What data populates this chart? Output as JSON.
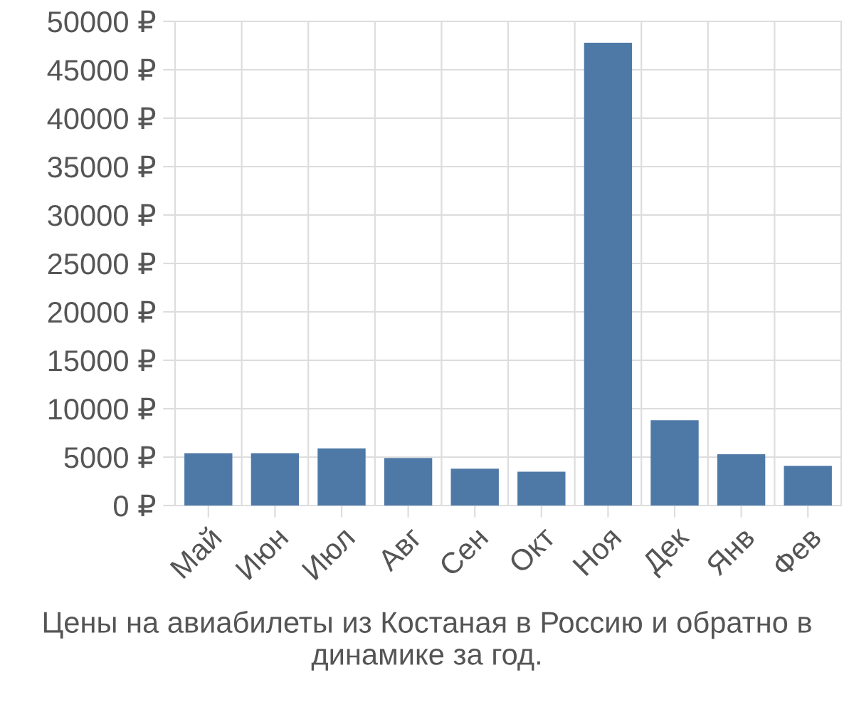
{
  "chart_data": {
    "type": "bar",
    "categories": [
      "Май",
      "Июн",
      "Июл",
      "Авг",
      "Сен",
      "Окт",
      "Ноя",
      "Дек",
      "Янв",
      "Фев"
    ],
    "values": [
      5400,
      5400,
      5900,
      4900,
      3800,
      3500,
      47800,
      8800,
      5300,
      4100
    ],
    "color": "#4e79a7",
    "ylim": [
      0,
      50000
    ],
    "yticks": [
      {
        "value": 0,
        "label": "0 ₽"
      },
      {
        "value": 5000,
        "label": "5000 ₽"
      },
      {
        "value": 10000,
        "label": "10000 ₽"
      },
      {
        "value": 15000,
        "label": "15000 ₽"
      },
      {
        "value": 20000,
        "label": "20000 ₽"
      },
      {
        "value": 25000,
        "label": "25000 ₽"
      },
      {
        "value": 30000,
        "label": "30000 ₽"
      },
      {
        "value": 35000,
        "label": "35000 ₽"
      },
      {
        "value": 40000,
        "label": "40000 ₽"
      },
      {
        "value": 45000,
        "label": "45000 ₽"
      },
      {
        "value": 50000,
        "label": "50000 ₽"
      }
    ],
    "grid": true,
    "annotations": [
      "Цены на авиабилеты из Костаная в Россию и обратно в динамике за год."
    ]
  }
}
